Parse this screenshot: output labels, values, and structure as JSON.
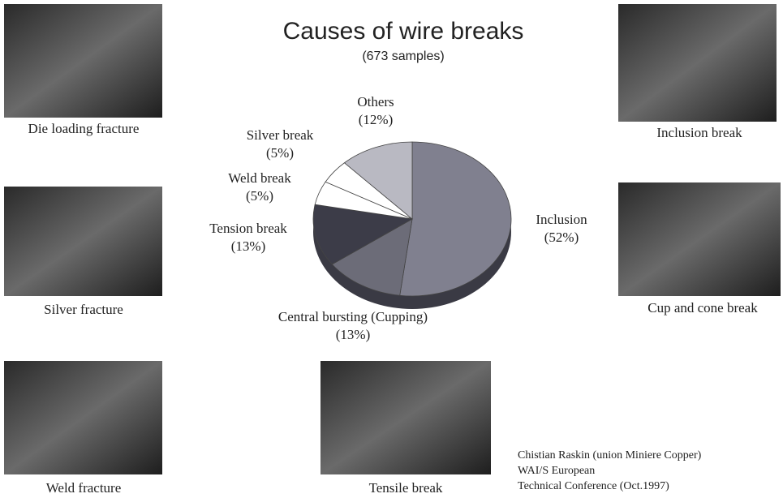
{
  "chart_data": {
    "type": "pie",
    "title": "Causes of wire breaks",
    "subtitle": "(673 samples)",
    "categories": [
      "Inclusion",
      "Central bursting (Cupping)",
      "Tension break",
      "Weld break",
      "Silver break",
      "Others"
    ],
    "values": [
      52,
      13,
      13,
      5,
      5,
      12
    ],
    "value_labels": [
      "(52%)",
      "(13%)",
      "(13%)",
      "(5%)",
      "(5%)",
      "(12%)"
    ],
    "colors": [
      "#80808f",
      "#6c6c78",
      "#3c3c48",
      "#ffffff",
      "#ffffff",
      "#b9b9c2"
    ]
  },
  "figures": [
    "Die loading fracture",
    "Silver fracture",
    "Weld fracture",
    "Inclusion break",
    "Cup and cone break",
    "Tensile break"
  ],
  "credit": [
    "Chistian Raskin (union Miniere Copper)",
    "WAI/S European",
    "Technical Conference (Oct.1997)"
  ]
}
